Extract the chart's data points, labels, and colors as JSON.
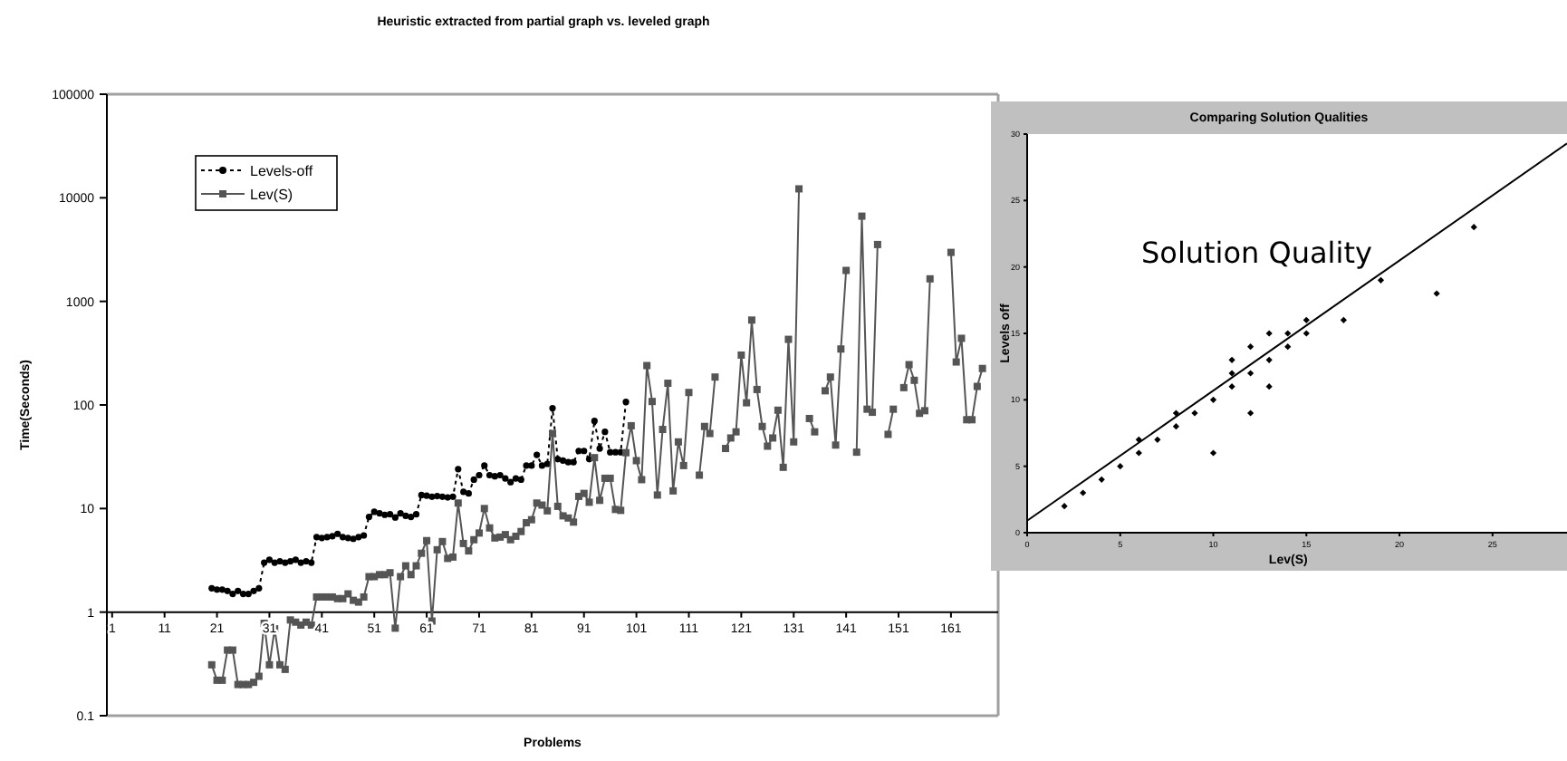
{
  "chart_data": [
    {
      "type": "line",
      "title": "Heuristic extracted from partial graph vs. leveled graph",
      "xlabel": "Problems",
      "ylabel": "Time(Seconds)",
      "log": "y",
      "legend": "top left",
      "xlim": [
        0,
        170
      ],
      "xticks": [
        1,
        11,
        21,
        31,
        41,
        51,
        61,
        71,
        81,
        91,
        101,
        111,
        121,
        131,
        141,
        151,
        161
      ],
      "ylim": [
        0.1,
        100000
      ],
      "yticks": [
        0.1,
        1,
        10,
        100,
        1000,
        10000,
        100000
      ],
      "x": [
        20,
        21,
        22,
        23,
        24,
        25,
        26,
        27,
        28,
        29,
        30,
        31,
        32,
        33,
        34,
        35,
        36,
        37,
        38,
        39,
        40,
        41,
        42,
        43,
        44,
        45,
        46,
        47,
        48,
        49,
        50,
        51,
        52,
        53,
        54,
        55,
        56,
        57,
        58,
        59,
        60,
        61,
        62,
        63,
        64,
        65,
        66,
        67,
        68,
        69,
        70,
        71,
        72,
        73,
        74,
        75,
        76,
        77,
        78,
        79,
        80,
        81,
        82,
        83,
        84,
        85,
        86,
        87,
        88,
        89,
        90,
        91,
        92,
        93,
        94,
        95,
        96,
        97,
        98,
        99,
        100,
        101,
        102,
        103,
        104,
        105,
        106,
        107,
        108,
        109,
        110,
        111,
        112,
        113,
        114,
        115,
        116,
        117,
        118,
        119,
        120,
        121,
        122,
        123,
        124,
        125,
        126,
        127,
        128,
        129,
        130,
        131,
        132,
        133,
        134,
        135,
        136,
        137,
        138,
        139,
        140,
        141,
        142,
        143,
        144,
        145,
        146,
        147,
        148,
        149,
        150,
        151,
        152,
        153,
        154,
        155,
        156,
        157,
        158,
        159,
        160,
        161,
        162,
        163,
        164,
        165,
        166,
        167
      ],
      "series": [
        {
          "name": "Levels-off",
          "color": "#000000",
          "marker": "circle",
          "line_style": "dotted",
          "values": [
            1.7,
            1.65,
            1.65,
            1.6,
            1.5,
            1.6,
            1.5,
            1.5,
            1.6,
            1.7,
            3.0,
            3.2,
            3.0,
            3.1,
            3.0,
            3.1,
            3.2,
            3.0,
            3.1,
            3.0,
            5.3,
            5.2,
            5.3,
            5.4,
            5.7,
            5.3,
            5.2,
            5.1,
            5.3,
            5.5,
            8.3,
            9.3,
            9.0,
            8.7,
            8.8,
            8.2,
            9.0,
            8.5,
            8.3,
            8.8,
            13.5,
            13.3,
            13.0,
            13.2,
            13.0,
            12.8,
            13.0,
            24,
            14.5,
            14,
            19,
            21,
            26,
            21,
            20.5,
            21,
            19.5,
            18,
            19.5,
            19,
            26,
            26,
            33,
            26,
            27,
            93,
            30,
            29,
            28,
            28,
            36,
            36,
            30,
            70,
            38,
            55,
            35,
            35,
            35,
            107,
            null,
            null,
            null,
            null,
            null,
            null,
            null,
            null,
            null,
            null,
            null,
            null,
            null,
            null,
            null,
            null,
            null,
            null,
            null,
            null,
            null,
            null,
            null,
            null,
            null,
            null,
            null,
            null,
            null,
            null,
            null,
            null,
            null,
            null,
            null,
            null,
            null,
            null,
            null,
            null,
            null,
            null,
            null,
            null,
            null,
            null,
            null,
            null,
            null,
            null,
            null,
            null,
            null,
            null,
            null,
            null,
            null,
            null,
            null,
            null,
            null,
            null,
            null,
            null,
            null,
            null,
            null,
            null
          ]
        },
        {
          "name": "Lev(S)",
          "color": "#555555",
          "marker": "square",
          "line_style": "solid",
          "values": [
            0.31,
            0.22,
            0.22,
            0.43,
            0.43,
            0.2,
            0.2,
            0.2,
            0.21,
            0.24,
            0.78,
            0.31,
            0.69,
            0.31,
            0.28,
            0.84,
            0.8,
            0.75,
            0.8,
            0.75,
            1.4,
            1.4,
            1.4,
            1.4,
            1.35,
            1.35,
            1.5,
            1.3,
            1.25,
            1.4,
            2.2,
            2.2,
            2.3,
            2.3,
            2.4,
            0.7,
            2.2,
            2.8,
            2.3,
            2.8,
            3.7,
            4.9,
            0.82,
            4.0,
            4.8,
            3.3,
            3.4,
            11.3,
            4.6,
            3.9,
            5.0,
            5.8,
            10,
            6.5,
            5.2,
            5.3,
            5.6,
            5.0,
            5.4,
            6.0,
            7.3,
            7.8,
            11.3,
            10.8,
            9.5,
            53,
            10.5,
            8.5,
            8.1,
            7.4,
            13.1,
            14,
            11.5,
            31,
            12,
            19.6,
            19.6,
            9.8,
            9.6,
            34.6,
            63,
            29,
            19,
            240,
            108,
            13.5,
            58,
            162,
            14.8,
            44,
            26,
            132,
            null,
            21,
            62,
            53,
            186,
            null,
            38,
            48,
            55,
            303,
            105,
            660,
            141,
            62,
            40,
            48,
            89,
            25,
            430,
            44,
            12200,
            null,
            74,
            55,
            null,
            137,
            186,
            41,
            347,
            1990,
            null,
            35,
            6650,
            91,
            85,
            3540,
            null,
            52,
            91,
            null,
            147,
            245,
            173,
            83,
            88,
            1650,
            null,
            null,
            null,
            2970,
            260,
            440,
            72,
            72,
            151,
            225
          ]
        }
      ]
    },
    {
      "type": "scatter",
      "title": "Comparing Solution Qualities",
      "xlabel": "Lev(S)",
      "ylabel": "Levels off",
      "annotations": [
        "Solution Quality"
      ],
      "xlim": [
        0,
        29
      ],
      "xticks": [
        0,
        5,
        10,
        15,
        20,
        25
      ],
      "ylim": [
        0,
        30
      ],
      "yticks": [
        0,
        5,
        10,
        15,
        20,
        25,
        30
      ],
      "series": [
        {
          "type": "scatter",
          "color": "#000000",
          "x": [
            2,
            3,
            4,
            5,
            6,
            6,
            7,
            8,
            8,
            9,
            10,
            10,
            11,
            11,
            11,
            12,
            12,
            12,
            13,
            13,
            13,
            14,
            14,
            15,
            15,
            17,
            19,
            22,
            24
          ],
          "values": [
            2,
            3,
            4,
            5,
            7,
            6,
            7,
            9,
            8,
            9,
            10,
            6,
            13,
            12,
            11,
            14,
            12,
            9,
            15,
            13,
            11,
            15,
            14,
            16,
            15,
            16,
            19,
            18,
            23
          ]
        },
        {
          "type": "line",
          "color": "#000000",
          "x": [
            0,
            29
          ],
          "values": [
            0.9,
            29.3
          ]
        }
      ]
    }
  ]
}
